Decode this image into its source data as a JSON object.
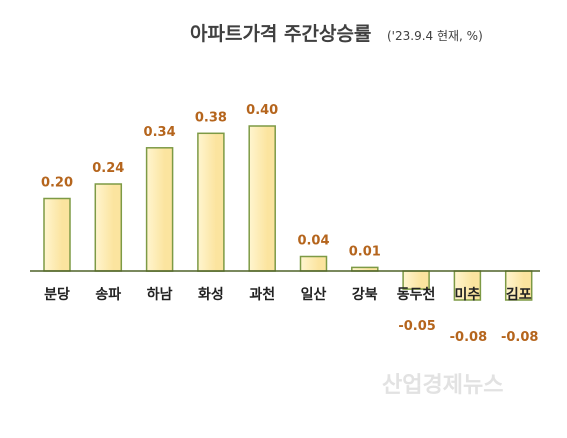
{
  "chart_data": {
    "type": "bar",
    "title": "아파트가격 주간상승률",
    "subtitle": "('23.9.4 현재, %)",
    "categories": [
      "분당",
      "송파",
      "하남",
      "화성",
      "과천",
      "일산",
      "강북",
      "동두천",
      "미추",
      "김포"
    ],
    "values": [
      0.2,
      0.24,
      0.34,
      0.38,
      0.4,
      0.04,
      0.01,
      -0.05,
      -0.08,
      -0.08
    ],
    "value_labels": [
      "0.20",
      "0.24",
      "0.34",
      "0.38",
      "0.40",
      "0.04",
      "0.01",
      "-0.05",
      "-0.08",
      "-0.08"
    ],
    "xlabel": "",
    "ylabel": "",
    "ylim": [
      -0.08,
      0.4
    ],
    "grid": false,
    "legend": "none",
    "colors": {
      "bar_fill": "#fbe49f",
      "bar_highlight": "#fff5cf",
      "bar_stroke": "#7d9a45",
      "axis": "#4f6228",
      "value_label": "#b5651d"
    }
  },
  "watermark": "산업경제뉴스"
}
